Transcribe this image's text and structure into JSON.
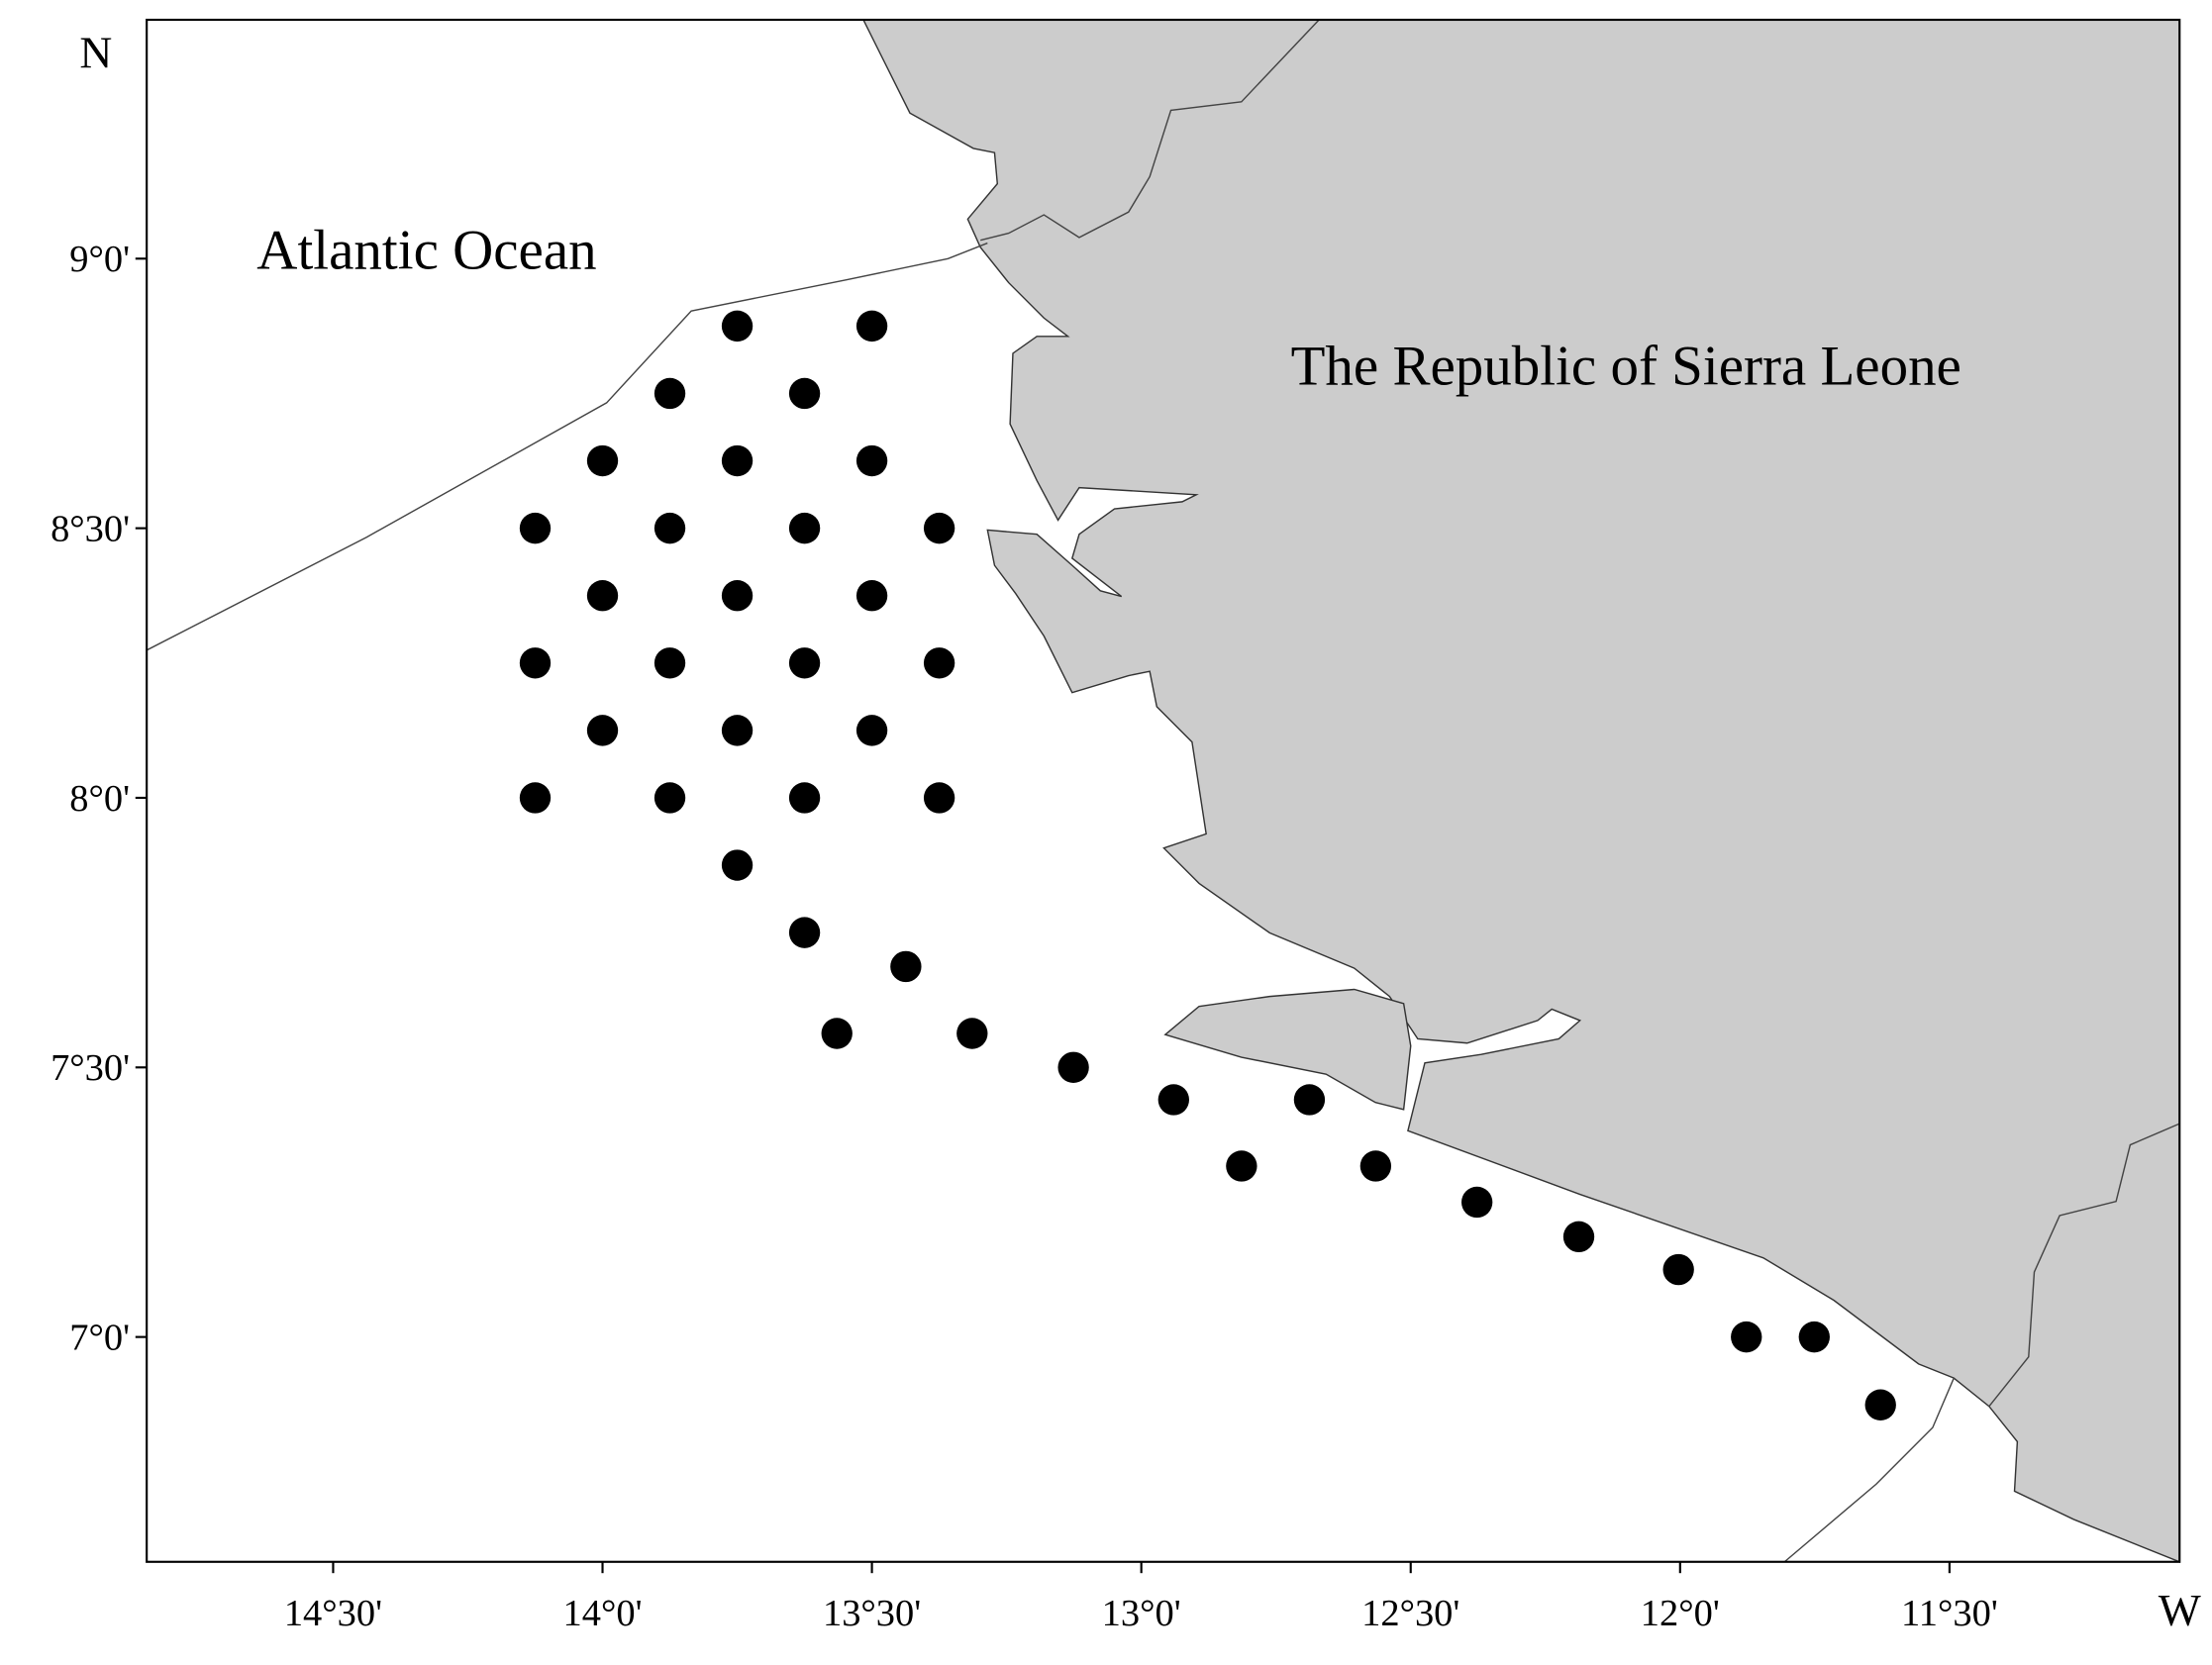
{
  "chart_data": {
    "type": "scatter",
    "x_axis_label": "W",
    "y_axis_label": "N",
    "annotations": [
      "Atlantic Ocean",
      "The Republic of Sierra Leone"
    ],
    "xlim": [
      14.846,
      11.073
    ],
    "ylim": [
      6.583,
      9.443
    ],
    "xticks": [
      {
        "value": 14.5,
        "label": "14°30'"
      },
      {
        "value": 14.0,
        "label": "14°0'"
      },
      {
        "value": 13.5,
        "label": "13°30'"
      },
      {
        "value": 13.0,
        "label": "13°0'"
      },
      {
        "value": 12.5,
        "label": "12°30'"
      },
      {
        "value": 12.0,
        "label": "12°0'"
      },
      {
        "value": 11.5,
        "label": "11°30'"
      }
    ],
    "yticks": [
      {
        "value": 9.0,
        "label": "9°0'"
      },
      {
        "value": 8.5,
        "label": "8°30'"
      },
      {
        "value": 8.0,
        "label": "8°0'"
      },
      {
        "value": 7.5,
        "label": "7°30'"
      },
      {
        "value": 7.0,
        "label": "7°0'"
      }
    ],
    "color": "#000000",
    "x": [
      13.75,
      13.5,
      13.875,
      13.625,
      14.0,
      13.75,
      13.5,
      14.125,
      13.875,
      13.625,
      13.375,
      14.0,
      13.75,
      13.5,
      14.125,
      13.875,
      13.625,
      13.375,
      14.0,
      13.75,
      13.5,
      14.125,
      13.875,
      13.625,
      13.375,
      13.75,
      13.625,
      13.437,
      13.565,
      13.314,
      13.126,
      12.94,
      12.688,
      12.814,
      12.565,
      12.377,
      12.188,
      12.003,
      11.877,
      11.751,
      11.628
    ],
    "values": [
      8.875,
      8.875,
      8.75,
      8.75,
      8.625,
      8.625,
      8.625,
      8.5,
      8.5,
      8.5,
      8.5,
      8.375,
      8.375,
      8.375,
      8.25,
      8.25,
      8.25,
      8.25,
      8.125,
      8.125,
      8.125,
      8.0,
      8.0,
      8.0,
      8.0,
      7.875,
      7.75,
      7.687,
      7.563,
      7.563,
      7.5,
      7.44,
      7.44,
      7.317,
      7.317,
      7.25,
      7.186,
      7.125,
      7.0,
      7.0,
      6.874
    ]
  }
}
